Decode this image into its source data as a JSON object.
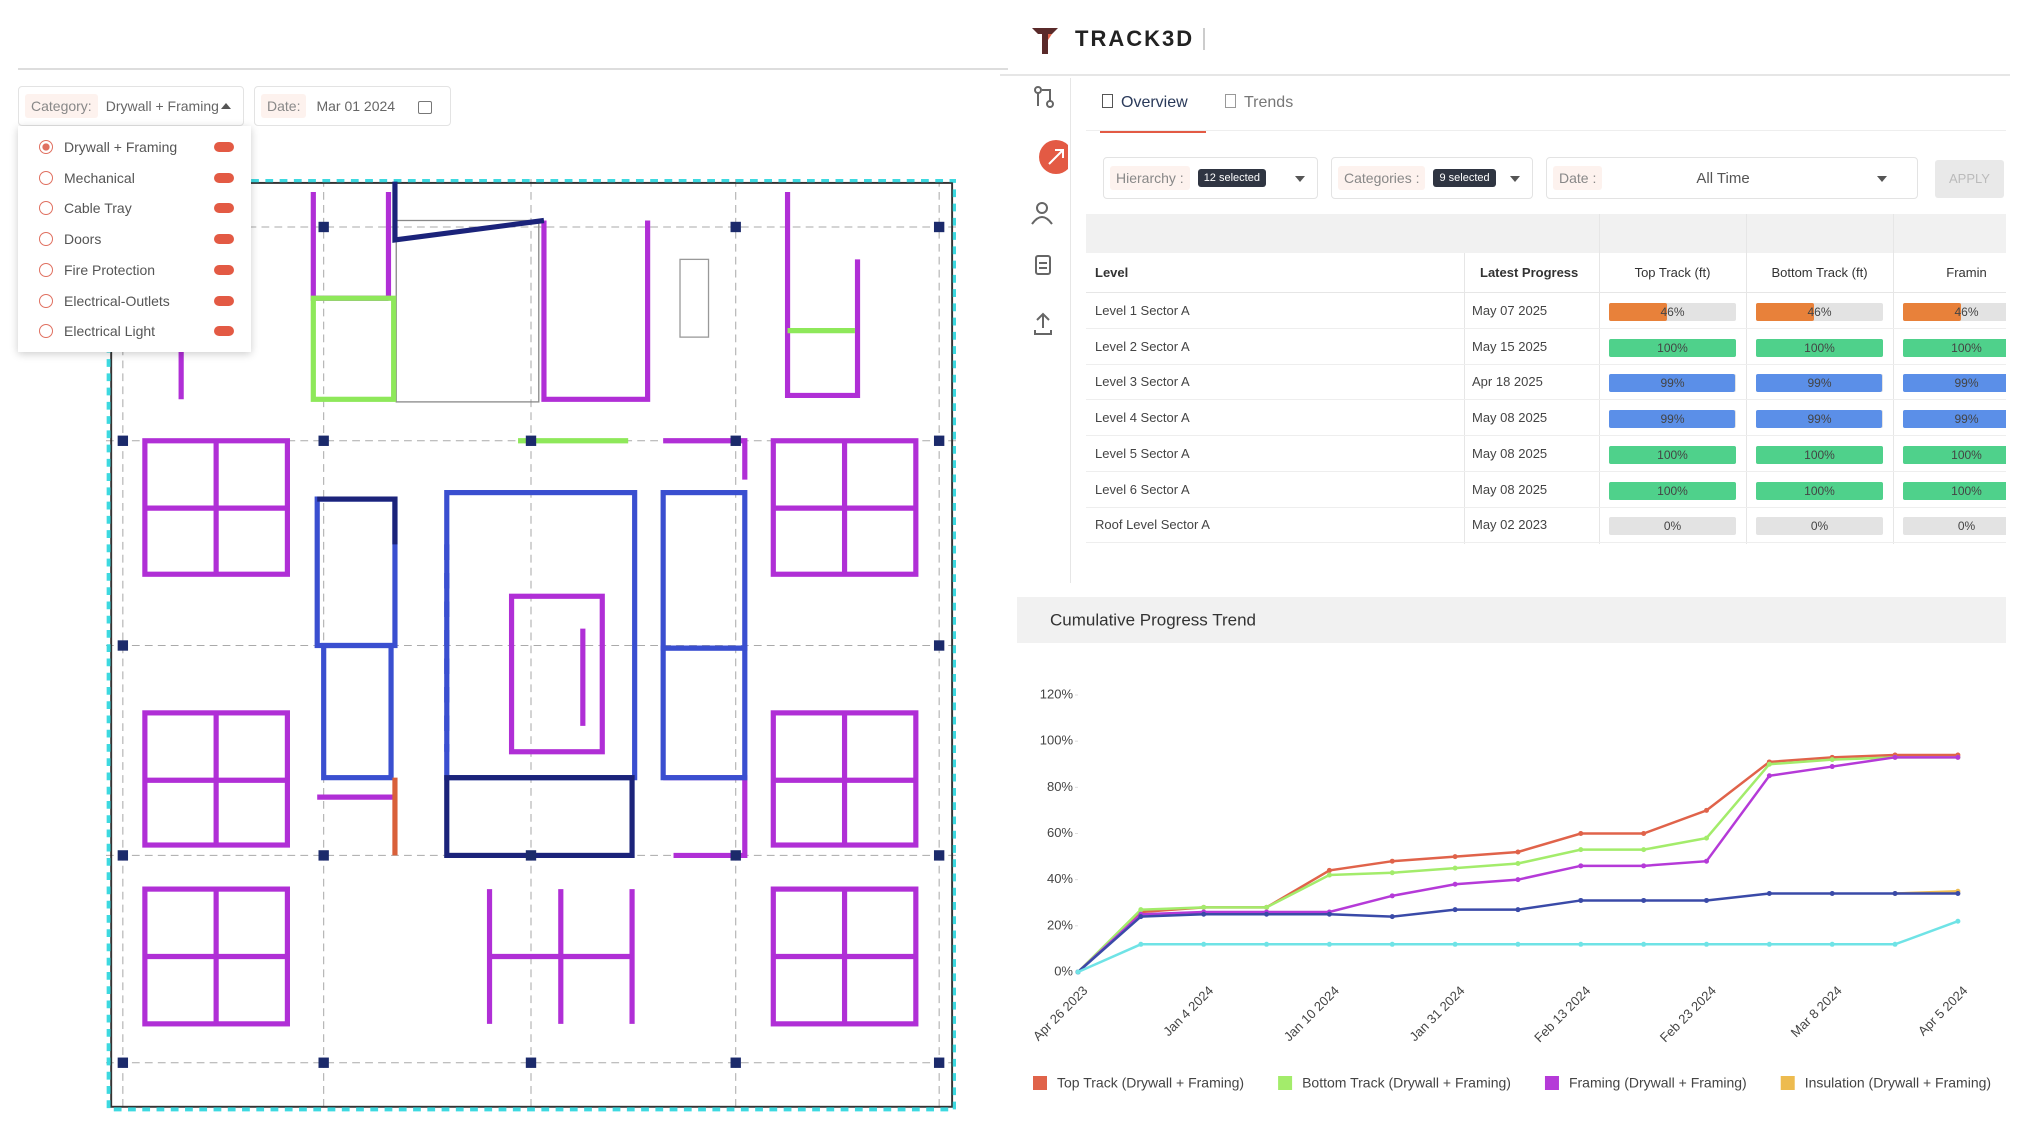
{
  "filter_bar": {
    "category_label": "Category:",
    "category_value": "Drywall + Framing",
    "date_label": "Date:",
    "date_value": "Mar 01 2024"
  },
  "category_options": [
    "Drywall + Framing",
    "Mechanical",
    "Cable Tray",
    "Doors",
    "Fire Protection",
    "Electrical-Outlets",
    "Electrical Light"
  ],
  "selected_option": 0,
  "brand": "TRACK3D",
  "tabs": [
    "Overview",
    "Trends"
  ],
  "filters": {
    "hierarchy_label": "Hierarchy :",
    "hierarchy_value": "12 selected",
    "categories_label": "Categories :",
    "categories_value": "9 selected",
    "date_label": "Date :",
    "date_value": "All Time",
    "apply": "APPLY"
  },
  "table": {
    "columns": [
      "Level",
      "Latest Progress",
      "Top Track (ft)",
      "Bottom Track (ft)",
      "Framin"
    ],
    "rows": [
      {
        "level": "Level 1 Sector A",
        "latest": "May 07 2025",
        "color": "#e8813a",
        "cells": [
          {
            "value": 46,
            "label": "46%"
          },
          {
            "value": 46,
            "label": "46%"
          },
          {
            "value": 46,
            "label": "46%"
          }
        ]
      },
      {
        "level": "Level 2 Sector A",
        "latest": "May 15 2025",
        "color": "#4fd18b",
        "cells": [
          {
            "value": 100,
            "label": "100%"
          },
          {
            "value": 100,
            "label": "100%"
          },
          {
            "value": 100,
            "label": "100%"
          }
        ]
      },
      {
        "level": "Level 3 Sector A",
        "latest": "Apr 18 2025",
        "color": "#5b8fe8",
        "cells": [
          {
            "value": 99,
            "label": "99%"
          },
          {
            "value": 99,
            "label": "99%"
          },
          {
            "value": 99,
            "label": "99%"
          }
        ]
      },
      {
        "level": "Level 4 Sector A",
        "latest": "May 08 2025",
        "color": "#5b8fe8",
        "cells": [
          {
            "value": 99,
            "label": "99%"
          },
          {
            "value": 99,
            "label": "99%"
          },
          {
            "value": 99,
            "label": "99%"
          }
        ]
      },
      {
        "level": "Level 5 Sector A",
        "latest": "May 08 2025",
        "color": "#4fd18b",
        "cells": [
          {
            "value": 100,
            "label": "100%"
          },
          {
            "value": 100,
            "label": "100%"
          },
          {
            "value": 100,
            "label": "100%"
          }
        ]
      },
      {
        "level": "Level 6 Sector A",
        "latest": "May 08 2025",
        "color": "#4fd18b",
        "cells": [
          {
            "value": 100,
            "label": "100%"
          },
          {
            "value": 100,
            "label": "100%"
          },
          {
            "value": 100,
            "label": "100%"
          }
        ]
      },
      {
        "level": "Roof Level Sector A",
        "latest": "May 02 2023",
        "color": "#cccccc",
        "cells": [
          {
            "value": 0,
            "label": "0%"
          },
          {
            "value": 0,
            "label": "0%"
          },
          {
            "value": 0,
            "label": "0%"
          }
        ]
      }
    ]
  },
  "chart_data": {
    "type": "line",
    "title": "Cumulative Progress Trend",
    "categories": [
      "Apr 26 2023",
      null,
      "Jan 4 2024",
      null,
      "Jan 10 2024",
      null,
      "Jan 31 2024",
      null,
      "Feb 13 2024",
      null,
      "Feb 23 2024",
      null,
      "Mar 8 2024",
      null,
      "Apr 5 2024"
    ],
    "ylim": [
      0,
      120
    ],
    "yticks": [
      {
        "value": 0,
        "label": "0%"
      },
      {
        "value": 20,
        "label": "20%"
      },
      {
        "value": 40,
        "label": "40%"
      },
      {
        "value": 60,
        "label": "60%"
      },
      {
        "value": 80,
        "label": "80%"
      },
      {
        "value": 100,
        "label": "100%"
      },
      {
        "value": 120,
        "label": "120%"
      }
    ],
    "grid": false,
    "series": [
      {
        "name": "Top Track (Drywall + Framing)",
        "color": "#e0634a",
        "values": [
          0,
          26,
          28,
          28,
          44,
          48,
          50,
          52,
          60,
          60,
          70,
          91,
          93,
          94,
          94
        ]
      },
      {
        "name": "Bottom Track (Drywall + Framing)",
        "color": "#a3ec6b",
        "values": [
          0,
          27,
          28,
          28,
          42,
          43,
          45,
          47,
          53,
          53,
          58,
          90,
          92,
          93,
          93
        ]
      },
      {
        "name": "Framing (Drywall + Framing)",
        "color": "#b53ad8",
        "values": [
          0,
          25,
          26,
          26,
          26,
          33,
          38,
          40,
          46,
          46,
          48,
          85,
          89,
          93,
          93
        ]
      },
      {
        "name": "Insulation (Drywall + Framing)",
        "color": "#edbb4f",
        "values": [
          null,
          null,
          null,
          null,
          null,
          null,
          null,
          null,
          null,
          null,
          null,
          null,
          null,
          34,
          35
        ]
      },
      {
        "color": "#3a4aa8",
        "values": [
          0,
          24,
          25,
          25,
          25,
          24,
          27,
          27,
          31,
          31,
          31,
          34,
          34,
          34,
          34
        ]
      },
      {
        "color": "#6fe3e6",
        "values": [
          0,
          12,
          12,
          12,
          12,
          12,
          12,
          12,
          12,
          12,
          12,
          12,
          12,
          12,
          22
        ]
      }
    ]
  }
}
